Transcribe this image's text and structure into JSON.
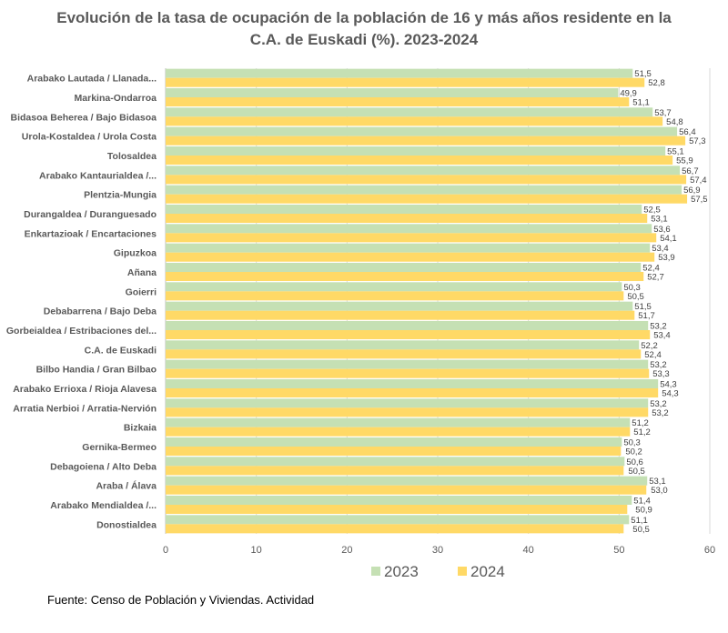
{
  "chart_data": {
    "type": "bar",
    "orientation": "horizontal",
    "title_lines": [
      "Evolución de la tasa de ocupación de la población de 16 y más años residente en la",
      "C.A. de Euskadi (%). 2023-2024"
    ],
    "title": "Evolución de la tasa de ocupación de la población de 16 y más años residente en la C.A. de Euskadi (%). 2023-2024",
    "xlabel": "",
    "ylabel": "",
    "xlim": [
      0,
      60
    ],
    "x_ticks": [
      0,
      10,
      20,
      30,
      40,
      50,
      60
    ],
    "grid": true,
    "legend_position": "bottom",
    "categories": [
      "Arabako Lautada  /  Llanada...",
      "Markina-Ondarroa",
      "Bidasoa Beherea  /  Bajo Bidasoa",
      "Urola-Kostaldea  /  Urola Costa",
      "Tolosaldea",
      "Arabako Kantaurialdea /...",
      "Plentzia-Mungia",
      "Durangaldea  /  Duranguesado",
      "Enkartazioak  /  Encartaciones",
      "Gipuzkoa",
      "Añana",
      "Goierri",
      "Debabarrena / Bajo Deba",
      "Gorbeialdea / Estribaciones del...",
      "C.A. de Euskadi",
      "Bilbo Handia  /  Gran Bilbao",
      "Arabako Errioxa / Rioja Alavesa",
      "Arratia Nerbioi  /  Arratia-Nervión",
      "Bizkaia",
      "Gernika-Bermeo",
      "Debagoiena  /  Alto Deba",
      "Araba / Álava",
      "Arabako Mendialdea  /...",
      "Donostialdea"
    ],
    "series": [
      {
        "name": "2023",
        "color": "#C5E0B4",
        "values": [
          51.5,
          49.9,
          53.7,
          56.4,
          55.1,
          56.7,
          56.9,
          52.5,
          53.6,
          53.4,
          52.4,
          50.3,
          51.5,
          53.2,
          52.2,
          53.2,
          54.3,
          53.2,
          51.2,
          50.3,
          50.6,
          53.1,
          51.4,
          51.1
        ],
        "labels": [
          "51,5",
          "49,9",
          "53,7",
          "56,4",
          "55,1",
          "56,7",
          "56,9",
          "52,5",
          "53,6",
          "53,4",
          "52,4",
          "50,3",
          "51,5",
          "53,2",
          "52,2",
          "53,2",
          "54,3",
          "53,2",
          "51,2",
          "50,3",
          "50,6",
          "53,1",
          "51,4",
          "51,1"
        ]
      },
      {
        "name": "2024",
        "color": "#FFD966",
        "values": [
          52.8,
          51.1,
          54.8,
          57.3,
          55.9,
          57.4,
          57.5,
          53.1,
          54.1,
          53.9,
          52.7,
          50.5,
          51.7,
          53.4,
          52.4,
          53.3,
          54.3,
          53.2,
          51.2,
          50.2,
          50.5,
          53.0,
          50.9,
          50.5
        ],
        "labels": [
          "52,8",
          "51,1",
          "54,8",
          "57,3",
          "55,9",
          "57,4",
          "57,5",
          "53,1",
          "54,1",
          "53,9",
          "52,7",
          "50,5",
          "51,7",
          "53,4",
          "52,4",
          "53,3",
          "54,3",
          "53,2",
          "51,2",
          "50,2",
          "50,5",
          "53,0",
          "50,9",
          "50,5"
        ]
      }
    ],
    "source_note": "Fuente: Censo de Población y Viviendas. Actividad"
  }
}
